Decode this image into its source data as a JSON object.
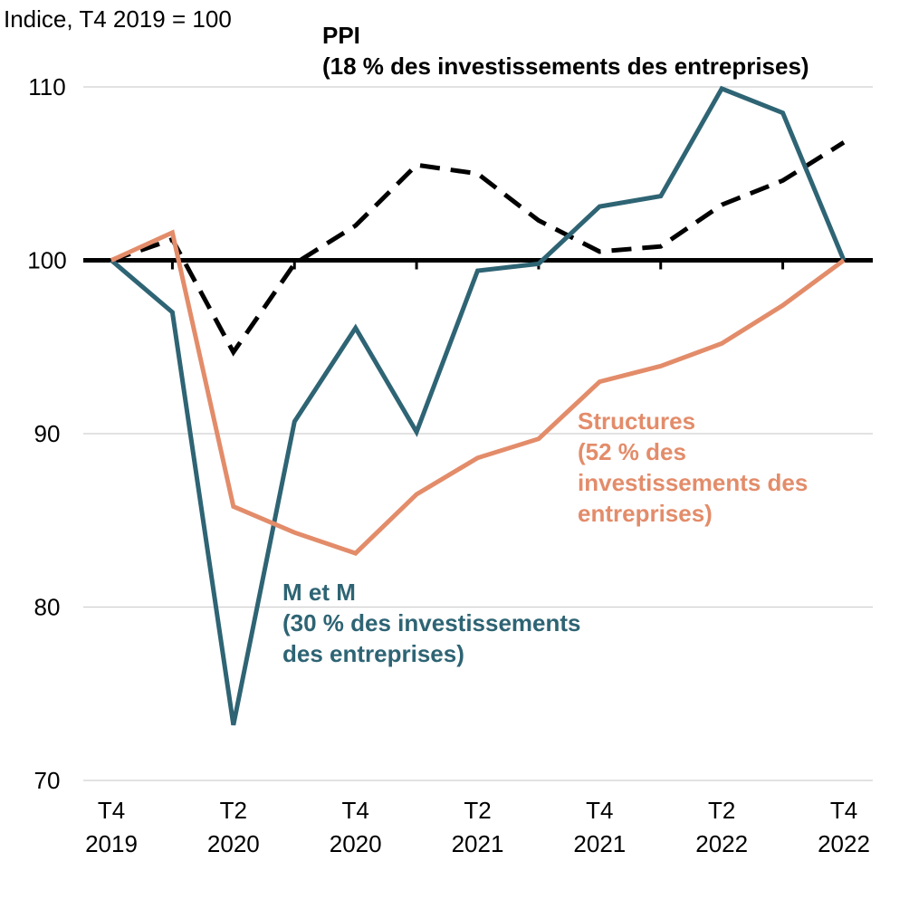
{
  "chart_data": {
    "type": "line",
    "ylabel": "Indice, T4 2019 = 100",
    "ylim": [
      70,
      110
    ],
    "yticks": [
      70,
      80,
      90,
      100,
      110
    ],
    "grid": true,
    "baseline": 100,
    "categories": [
      "T4 2019",
      "T1 2020",
      "T2 2020",
      "T3 2020",
      "T4 2020",
      "T1 2021",
      "T2 2021",
      "T3 2021",
      "T4 2021",
      "T1 2022",
      "T2 2022",
      "T3 2022",
      "T4 2022"
    ],
    "xtick_labels": [
      {
        "index": 0,
        "line1": "T4",
        "line2": "2019"
      },
      {
        "index": 2,
        "line1": "T2",
        "line2": "2020"
      },
      {
        "index": 4,
        "line1": "T4",
        "line2": "2020"
      },
      {
        "index": 6,
        "line1": "T2",
        "line2": "2021"
      },
      {
        "index": 8,
        "line1": "T4",
        "line2": "2021"
      },
      {
        "index": 10,
        "line1": "T2",
        "line2": "2022"
      },
      {
        "index": 12,
        "line1": "T4",
        "line2": "2022"
      }
    ],
    "series": [
      {
        "name": "PPI",
        "label_lines": [
          "PPI",
          "(18 % des investissements des entreprises)"
        ],
        "color": "#000000",
        "dashed": true,
        "values": [
          100,
          101.2,
          94.7,
          99.8,
          102.0,
          105.5,
          105.0,
          102.3,
          100.5,
          100.8,
          103.2,
          104.6,
          106.8
        ]
      },
      {
        "name": "M et M",
        "label_lines": [
          "M et M",
          "(30 % des investissements",
          "des entreprises)"
        ],
        "color": "#2e6474",
        "dashed": false,
        "values": [
          100,
          97.0,
          73.2,
          90.7,
          96.1,
          90.1,
          99.4,
          99.8,
          103.1,
          103.7,
          109.9,
          108.5,
          100.0
        ]
      },
      {
        "name": "Structures",
        "label_lines": [
          "Structures",
          "(52 % des",
          "investissements des",
          "entreprises)"
        ],
        "color": "#e38c6a",
        "dashed": false,
        "values": [
          100,
          101.6,
          85.8,
          84.3,
          83.1,
          86.5,
          88.6,
          89.7,
          93.0,
          93.9,
          95.2,
          97.4,
          100.0
        ]
      }
    ]
  }
}
